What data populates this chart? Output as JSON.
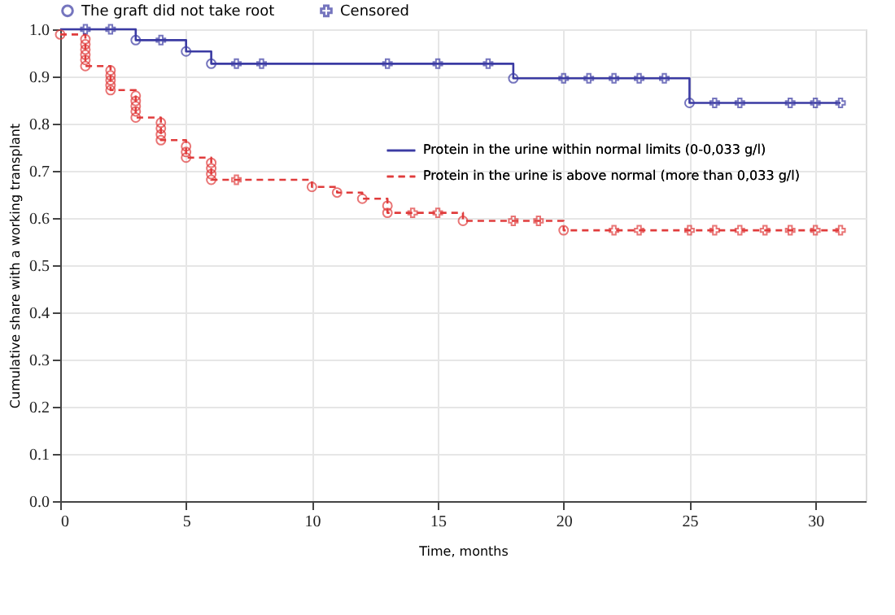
{
  "chart_data": {
    "type": "step",
    "xlabel": "Time, months",
    "ylabel": "Cumulative share with a working transplant",
    "xlim": [
      0,
      32
    ],
    "xticks": [
      0,
      5,
      10,
      15,
      20,
      25,
      30
    ],
    "ylim": [
      0,
      1.0
    ],
    "yticks": [
      {
        "value": 0,
        "label": "0.0"
      },
      0.1,
      0.2,
      0.3,
      0.4,
      0.5,
      0.6,
      0.7,
      0.8,
      0.9,
      {
        "value": 1,
        "label": "1.0"
      }
    ],
    "grid": true,
    "legend": "top",
    "series": [
      {
        "name": "Protein in the urine within normal limits (0-0,033 g/l)",
        "color": "#3b3ba3",
        "line_style": "solid",
        "x": [
          0,
          3,
          5,
          6,
          18,
          25,
          31
        ],
        "values": [
          1.0,
          0.977,
          0.953,
          0.927,
          0.896,
          0.844,
          0.844
        ]
      },
      {
        "name": "Protein in the urine is above normal (more than 0,033 g/l)",
        "color": "#e03c3c",
        "line_style": "dashed",
        "x": [
          0,
          1,
          2,
          3,
          4,
          5,
          6,
          10,
          11,
          12,
          13,
          16,
          20,
          31
        ],
        "values": [
          0.989,
          0.922,
          0.871,
          0.813,
          0.765,
          0.728,
          0.681,
          0.666,
          0.654,
          0.641,
          0.611,
          0.594,
          0.574,
          0.574
        ]
      },
      {
        "name": "The graft did not take root",
        "type": "scatter",
        "marker": "circle",
        "color": "#3b3ba3",
        "x": [
          3,
          5,
          6,
          18,
          25
        ],
        "values": [
          0.977,
          0.953,
          0.927,
          0.896,
          0.844
        ]
      },
      {
        "name": "Censored",
        "type": "scatter",
        "marker": "cross",
        "color": "#3b3ba3",
        "x": [
          1,
          2,
          4,
          7,
          8,
          13,
          15,
          17,
          20,
          21,
          22,
          23,
          24,
          26,
          27,
          29,
          30,
          31
        ],
        "values": [
          1.0,
          1.0,
          0.977,
          0.927,
          0.927,
          0.927,
          0.927,
          0.927,
          0.896,
          0.896,
          0.896,
          0.896,
          0.896,
          0.844,
          0.844,
          0.844,
          0.844,
          0.844
        ]
      },
      {
        "type": "scatter",
        "marker": "circle",
        "color": "#e03c3c",
        "x": [
          0,
          1,
          1,
          1,
          1,
          1,
          1,
          2,
          2,
          2,
          2,
          2,
          3,
          3,
          3,
          3,
          3,
          4,
          4,
          4,
          4,
          5,
          5,
          5,
          6,
          6,
          6,
          6,
          10,
          11,
          12,
          13,
          13,
          16,
          20
        ],
        "values": [
          0.989,
          0.979,
          0.968,
          0.957,
          0.946,
          0.935,
          0.922,
          0.913,
          0.902,
          0.892,
          0.881,
          0.871,
          0.859,
          0.848,
          0.837,
          0.826,
          0.813,
          0.802,
          0.79,
          0.777,
          0.765,
          0.752,
          0.74,
          0.728,
          0.717,
          0.705,
          0.693,
          0.681,
          0.666,
          0.654,
          0.641,
          0.626,
          0.611,
          0.594,
          0.574
        ]
      },
      {
        "type": "scatter",
        "marker": "cross",
        "color": "#e03c3c",
        "x": [
          7,
          14,
          15,
          18,
          19,
          22,
          23,
          25,
          26,
          27,
          28,
          29,
          30,
          31
        ],
        "values": [
          0.681,
          0.611,
          0.611,
          0.594,
          0.594,
          0.574,
          0.574,
          0.574,
          0.574,
          0.574,
          0.574,
          0.574,
          0.574,
          0.574
        ]
      }
    ]
  }
}
